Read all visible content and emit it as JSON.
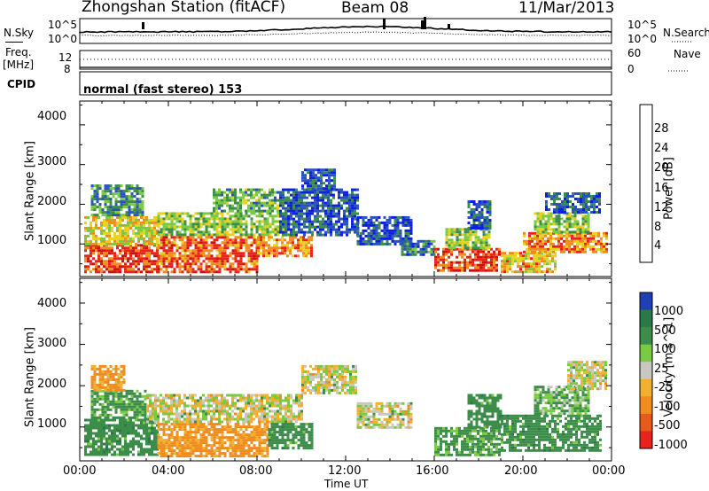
{
  "header": {
    "station": "Zhongshan Station (fitACF)",
    "beam": "Beam 08",
    "date": "11/Mar/2013"
  },
  "strips": {
    "nsky_label": "N.Sky",
    "nsky_tick_top": "10^5",
    "nsky_tick_bottom": "10^0",
    "nsearch_label": "N.Search",
    "nsearch_tick_top": "10^5",
    "nsearch_tick_bottom": "10^0",
    "freq_label_1": "Freq.",
    "freq_label_2": "[MHz]",
    "freq_tick_top": "12",
    "freq_tick_bottom": "8",
    "nave_label": "Nave",
    "nave_tick_top": "60",
    "nave_tick_bottom": "0",
    "cpid_label": "CPID",
    "cpid_text": "normal (fast stereo) 153"
  },
  "colors": {
    "blue": "#1f3fb5",
    "green": "#3c8c4a",
    "light_green": "#7ac943",
    "orange": "#f08c1e",
    "red": "#e8231c",
    "gray": "#c8c8c0",
    "yellow": "#e8d21e"
  },
  "chart_data": [
    {
      "type": "heatmap",
      "panel": "power",
      "xlabel": "",
      "ylabel": "Slant Range [km]",
      "x_ticks": [
        "00:00",
        "04:00",
        "08:00",
        "12:00",
        "16:00",
        "20:00",
        "00:00"
      ],
      "y_ticks": [
        "1000",
        "2000",
        "3000",
        "4000"
      ],
      "xlim": [
        0,
        24
      ],
      "ylim": [
        180,
        4600
      ],
      "colorbar": {
        "label": "Power [dB]",
        "ticks": [
          "4",
          "8",
          "12",
          "16",
          "20",
          "24",
          "28"
        ],
        "colors": [
          "#0d1fe0",
          "#2a52be",
          "#3c8c4a",
          "#7ac943",
          "#e8d21e",
          "#f08c1e",
          "#e8231c",
          "#d01010"
        ]
      },
      "cells": [
        {
          "t0": 0.2,
          "t1": 3.5,
          "r0": 300,
          "r1": 1000,
          "v": 26
        },
        {
          "t0": 0.2,
          "t1": 3.5,
          "r0": 1000,
          "r1": 1700,
          "v": 18
        },
        {
          "t0": 0.5,
          "t1": 2.8,
          "r0": 1700,
          "r1": 2500,
          "v": 10
        },
        {
          "t0": 3.5,
          "t1": 8.0,
          "r0": 300,
          "r1": 1200,
          "v": 24
        },
        {
          "t0": 3.5,
          "t1": 9.5,
          "r0": 1200,
          "r1": 1800,
          "v": 14
        },
        {
          "t0": 6.0,
          "t1": 9.0,
          "r0": 1800,
          "r1": 2400,
          "v": 12
        },
        {
          "t0": 8.0,
          "t1": 10.5,
          "r0": 700,
          "r1": 1200,
          "v": 22
        },
        {
          "t0": 9.0,
          "t1": 12.5,
          "r0": 1200,
          "r1": 2400,
          "v": 6
        },
        {
          "t0": 10.0,
          "t1": 11.5,
          "r0": 2400,
          "r1": 2900,
          "v": 6
        },
        {
          "t0": 12.5,
          "t1": 15.0,
          "r0": 1000,
          "r1": 1700,
          "v": 5
        },
        {
          "t0": 14.5,
          "t1": 16.0,
          "r0": 700,
          "r1": 1100,
          "v": 8
        },
        {
          "t0": 16.0,
          "t1": 19.0,
          "r0": 300,
          "r1": 900,
          "v": 26
        },
        {
          "t0": 16.5,
          "t1": 18.5,
          "r0": 900,
          "r1": 1400,
          "v": 14
        },
        {
          "t0": 17.5,
          "t1": 18.5,
          "r0": 1400,
          "r1": 2100,
          "v": 6
        },
        {
          "t0": 19.0,
          "t1": 21.5,
          "r0": 300,
          "r1": 800,
          "v": 20
        },
        {
          "t0": 20.0,
          "t1": 23.8,
          "r0": 800,
          "r1": 1300,
          "v": 22
        },
        {
          "t0": 20.5,
          "t1": 23.0,
          "r0": 1300,
          "r1": 1800,
          "v": 14
        },
        {
          "t0": 21.0,
          "t1": 23.5,
          "r0": 1800,
          "r1": 2300,
          "v": 6
        }
      ]
    },
    {
      "type": "heatmap",
      "panel": "velocity",
      "xlabel": "Time UT",
      "ylabel": "Slant Range [km]",
      "x_ticks": [
        "00:00",
        "04:00",
        "08:00",
        "12:00",
        "16:00",
        "20:00",
        "00:00"
      ],
      "y_ticks": [
        "1000",
        "2000",
        "3000",
        "4000"
      ],
      "xlim": [
        0,
        24
      ],
      "ylim": [
        180,
        4600
      ],
      "colorbar": {
        "label": "Velocity [m s^-1]",
        "ticks": [
          "1000",
          "500",
          "100",
          "25",
          "-25",
          "-100",
          "-500",
          "-1000"
        ],
        "colors": [
          "#1f3fb5",
          "#2a7a48",
          "#3c8c4a",
          "#7ac943",
          "#c8c8c0",
          "#f0b030",
          "#f08c1e",
          "#e85a1c",
          "#e8231c"
        ]
      },
      "cells": [
        {
          "t0": 0.2,
          "t1": 3.5,
          "r0": 300,
          "r1": 1200,
          "v": 200
        },
        {
          "t0": 0.5,
          "t1": 3.0,
          "r0": 1200,
          "r1": 1900,
          "v": 150
        },
        {
          "t0": 0.5,
          "t1": 2.0,
          "r0": 1900,
          "r1": 2500,
          "v": -150
        },
        {
          "t0": 3.5,
          "t1": 8.5,
          "r0": 300,
          "r1": 1100,
          "v": -150
        },
        {
          "t0": 3.0,
          "t1": 10.0,
          "r0": 1100,
          "r1": 1800,
          "v": 0
        },
        {
          "t0": 8.5,
          "t1": 10.5,
          "r0": 500,
          "r1": 1100,
          "v": 200
        },
        {
          "t0": 10.0,
          "t1": 12.5,
          "r0": 1800,
          "r1": 2500,
          "v": 0
        },
        {
          "t0": 12.5,
          "t1": 15.0,
          "r0": 1000,
          "r1": 1600,
          "v": 0
        },
        {
          "t0": 16.0,
          "t1": 19.0,
          "r0": 300,
          "r1": 1000,
          "v": 150
        },
        {
          "t0": 17.5,
          "t1": 19.0,
          "r0": 1000,
          "r1": 1800,
          "v": 200
        },
        {
          "t0": 19.0,
          "t1": 23.5,
          "r0": 400,
          "r1": 1300,
          "v": 200
        },
        {
          "t0": 20.5,
          "t1": 23.0,
          "r0": 1300,
          "r1": 2000,
          "v": 100
        },
        {
          "t0": 22.0,
          "t1": 23.8,
          "r0": 1900,
          "r1": 2600,
          "v": 0
        }
      ]
    }
  ]
}
